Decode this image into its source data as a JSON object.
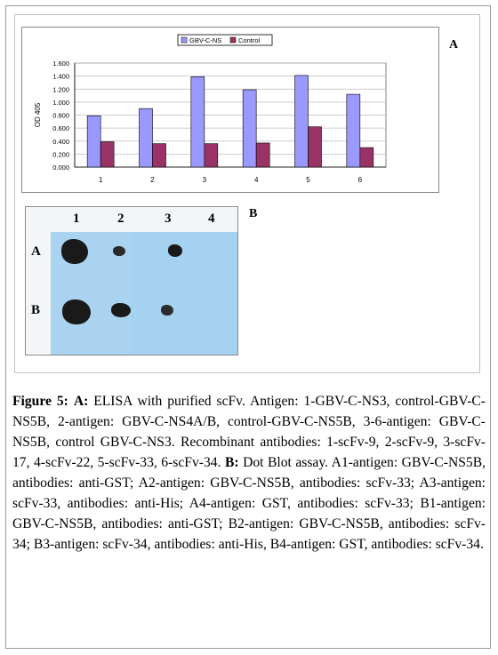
{
  "panel_a_label": "A",
  "panel_b_label": "B",
  "chart_data": {
    "type": "bar",
    "categories": [
      "1",
      "2",
      "3",
      "4",
      "5",
      "6"
    ],
    "series": [
      {
        "name": "GBV-C-NS",
        "color": "#9999ff",
        "values": [
          0.79,
          0.9,
          1.39,
          1.19,
          1.41,
          1.12
        ]
      },
      {
        "name": "Control",
        "color": "#993366",
        "values": [
          0.39,
          0.36,
          0.36,
          0.37,
          0.62,
          0.3
        ]
      }
    ],
    "ylabel": "OD 405",
    "ylim": [
      0,
      1.6
    ],
    "yticks": [
      "0.000",
      "0.200",
      "0.400",
      "0.600",
      "0.800",
      "1.000",
      "1.200",
      "1.400",
      "1.600"
    ],
    "grid": true,
    "legend": "top"
  },
  "blot": {
    "columns": [
      "1",
      "2",
      "3",
      "4"
    ],
    "rows": [
      "A",
      "B"
    ]
  },
  "caption": {
    "figure_label": "Figure 5:",
    "a_label": "A:",
    "a_text": " ELISA with purified scFv. Antigen: 1-GBV-C-NS3, control-GBV-C-NS5B, 2-antigen: GBV-C-NS4A/B, control-GBV-C-NS5B, 3-6-antigen: GBV-C-NS5B, control GBV-C-NS3. Recombinant antibodies: 1-scFv-9, 2-scFv-9, 3-scFv-17, 4-scFv-22, 5-scFv-33, 6-scFv-34. ",
    "b_label": "B:",
    "b_text": " Dot Blot assay. A1-antigen: GBV-C-NS5B, antibodies: anti-GST; A2-antigen: GBV-C-NS5B, antibodies: scFv-33; A3-antigen: scFv-33, antibodies: anti-His; A4-antigen: GST, antibodies: scFv-33; B1-antigen: GBV-C-NS5B, antibodies: anti-GST; B2-antigen: GBV-C-NS5B, antibodies: scFv-34; B3-antigen: scFv-34, antibodies: anti-His, B4-antigen: GST, antibodies: scFv-34."
  }
}
